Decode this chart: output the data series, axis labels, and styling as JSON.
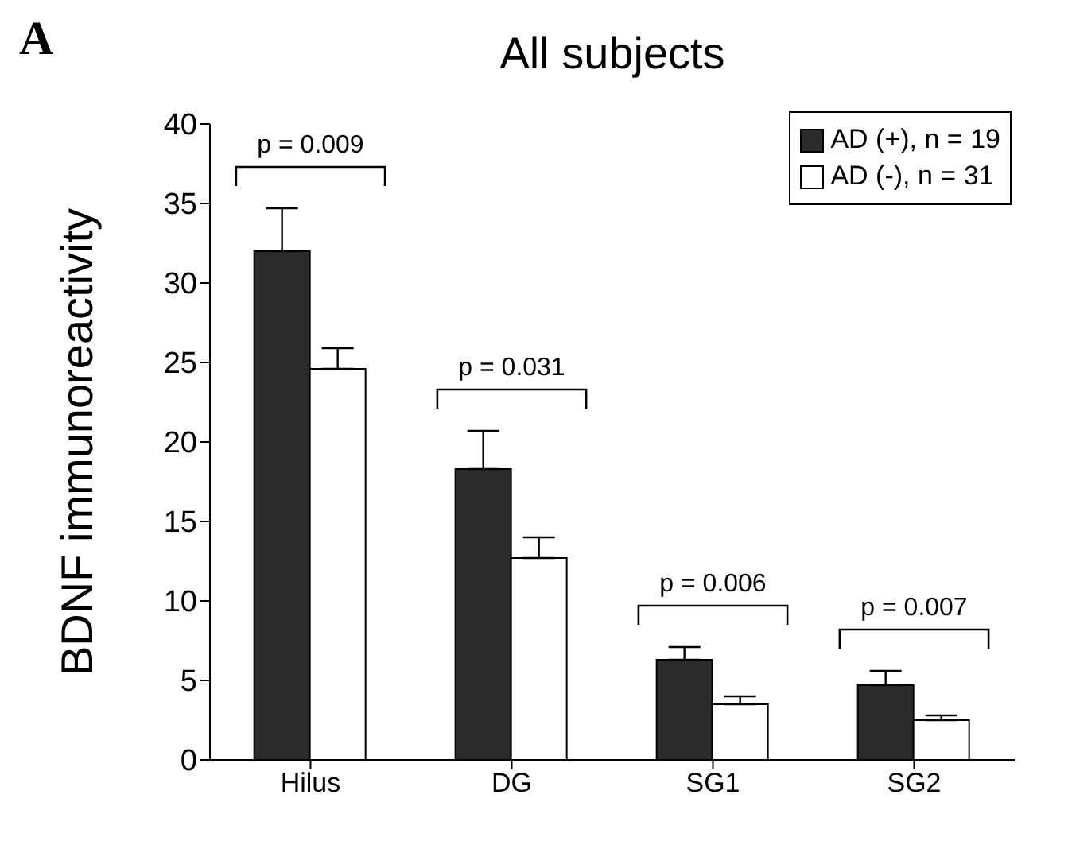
{
  "chart_data": {
    "type": "bar",
    "title": "All subjects",
    "ylabel": "BDNF immunoreactivity",
    "categories": [
      "Hilus",
      "DG",
      "SG1",
      "SG2"
    ],
    "series": [
      {
        "name": "AD (+), n = 19",
        "color": "#2b2b2b",
        "values": [
          32,
          18.3,
          6.3,
          4.7
        ],
        "errors": [
          [
            32,
            34.7
          ],
          [
            18.3,
            20.7
          ],
          [
            6.3,
            7.1
          ],
          [
            4.7,
            5.6
          ]
        ]
      },
      {
        "name": "AD (-), n = 31",
        "color": "#ffffff",
        "values": [
          24.6,
          12.7,
          3.5,
          2.5
        ],
        "errors": [
          [
            24.6,
            25.9
          ],
          [
            12.7,
            14
          ],
          [
            3.5,
            4
          ],
          [
            2.5,
            2.8
          ]
        ]
      }
    ],
    "ylim": [
      0,
      40
    ],
    "yticks": [
      0,
      5,
      10,
      15,
      20,
      25,
      30,
      35,
      40
    ],
    "grid": false,
    "legend": "top right",
    "annotations": [
      "A",
      "p = 0.009",
      "p = 0.031",
      "p = 0.006",
      "p = 0.007"
    ]
  }
}
